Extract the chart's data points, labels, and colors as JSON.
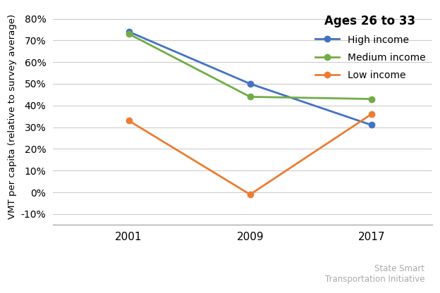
{
  "years": [
    2001,
    2009,
    2017
  ],
  "high_income": [
    74,
    50,
    31
  ],
  "medium_income": [
    73,
    44,
    43
  ],
  "low_income": [
    33,
    -1,
    36
  ],
  "high_color": "#4472C4",
  "medium_color": "#70AD47",
  "low_color": "#ED7D31",
  "legend_title": "Ages 26 to 33",
  "ylabel": "VMT per capita (relative to survey average)",
  "ylim": [
    -15,
    85
  ],
  "yticks": [
    -10,
    0,
    10,
    20,
    30,
    40,
    50,
    60,
    70,
    80
  ],
  "watermark": "State Smart\nTransportation Initiative",
  "legend_labels": [
    "High income",
    "Medium income",
    "Low income"
  ],
  "marker": "o",
  "linewidth": 2.0,
  "markersize": 6
}
